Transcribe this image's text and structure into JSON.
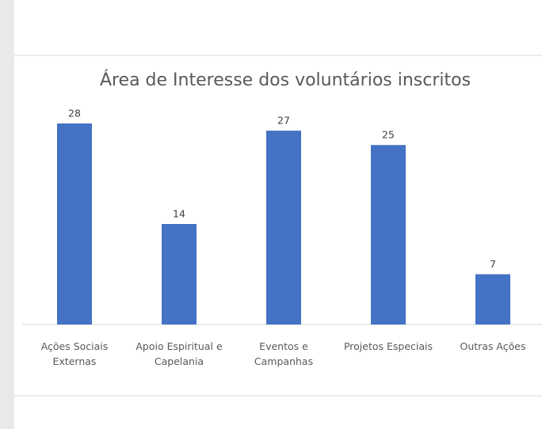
{
  "chart_data": {
    "type": "bar",
    "title": "Área de Interesse dos voluntários inscritos",
    "categories": [
      "Ações Sociais Externas",
      "Apoio Espiritual e Capelania",
      "Eventos e Campanhas",
      "Projetos Especiais",
      "Outras Ações"
    ],
    "values": [
      28,
      14,
      27,
      25,
      7
    ],
    "color": "#4472c4"
  }
}
